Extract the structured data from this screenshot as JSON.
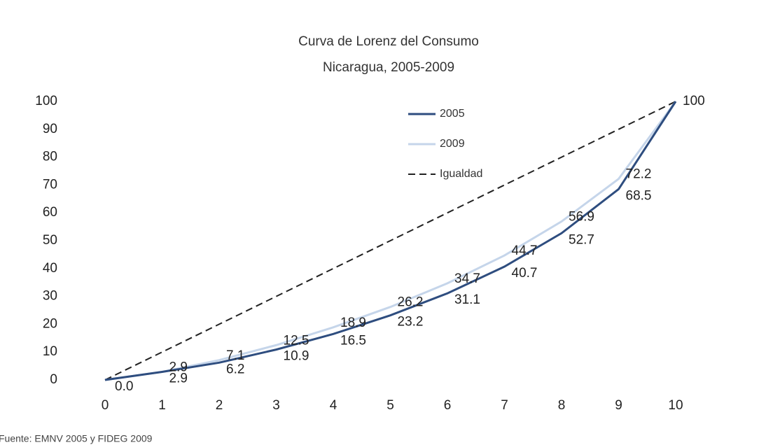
{
  "chart_data": {
    "type": "line",
    "title": "Curva de Lorenz del Consumo",
    "subtitle": "Nicaragua, 2005-2009",
    "source": "Fuente: EMNV 2005 y FIDEG 2009",
    "x": [
      0,
      1,
      2,
      3,
      4,
      5,
      6,
      7,
      8,
      9,
      10
    ],
    "series": [
      {
        "name": "2005",
        "color": "#2e4d7f",
        "line_style": "solid",
        "values": [
          0.0,
          2.9,
          6.2,
          10.9,
          16.5,
          23.2,
          31.1,
          40.7,
          52.7,
          68.5,
          100
        ],
        "value_labels": [
          "0.0",
          "2.9",
          "6.2",
          "10.9",
          "16.5",
          "23.2",
          "31.1",
          "40.7",
          "52.7",
          "68.5",
          "100"
        ]
      },
      {
        "name": "2009",
        "color": "#c5d5ea",
        "line_style": "solid",
        "values": [
          0.0,
          2.9,
          7.1,
          12.5,
          18.9,
          26.2,
          34.7,
          44.7,
          56.9,
          72.2,
          100
        ],
        "value_labels": [
          null,
          "2.9",
          "7.1",
          "12.5",
          "18.9",
          "26.2",
          "34.7",
          "44.7",
          "56.9",
          "72.2",
          null
        ]
      },
      {
        "name": "Igualdad",
        "color": "#222222",
        "line_style": "dashed",
        "values": [
          0,
          10,
          20,
          30,
          40,
          50,
          60,
          70,
          80,
          90,
          100
        ]
      }
    ],
    "xlim": [
      0,
      10
    ],
    "xticks": [
      0,
      1,
      2,
      3,
      4,
      5,
      6,
      7,
      8,
      9,
      10
    ],
    "ylim": [
      0,
      100
    ],
    "yticks": [
      0,
      10,
      20,
      30,
      40,
      50,
      60,
      70,
      80,
      90,
      100
    ],
    "grid": false
  }
}
